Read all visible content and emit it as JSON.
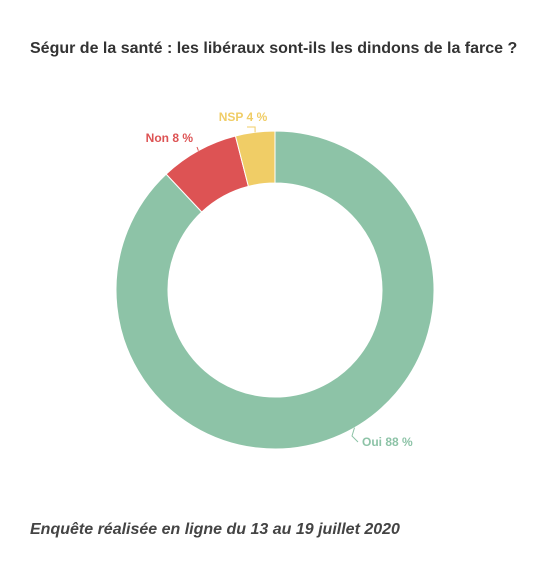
{
  "title": "Ségur de la santé : les libéraux sont-ils les dindons de la farce ?",
  "footnote": "Enquête réalisée en ligne du 13 au 19 juillet 2020",
  "chart_data": {
    "type": "pie",
    "donut": true,
    "slices": [
      {
        "label": "Oui",
        "value": 88,
        "display": "Oui 88 %",
        "color": "#8dc3a7"
      },
      {
        "label": "Non",
        "value": 8,
        "display": "Non 8 %",
        "color": "#dd5354"
      },
      {
        "label": "NSP",
        "value": 4,
        "display": "NSP 4 %",
        "color": "#f0cd66"
      }
    ]
  }
}
